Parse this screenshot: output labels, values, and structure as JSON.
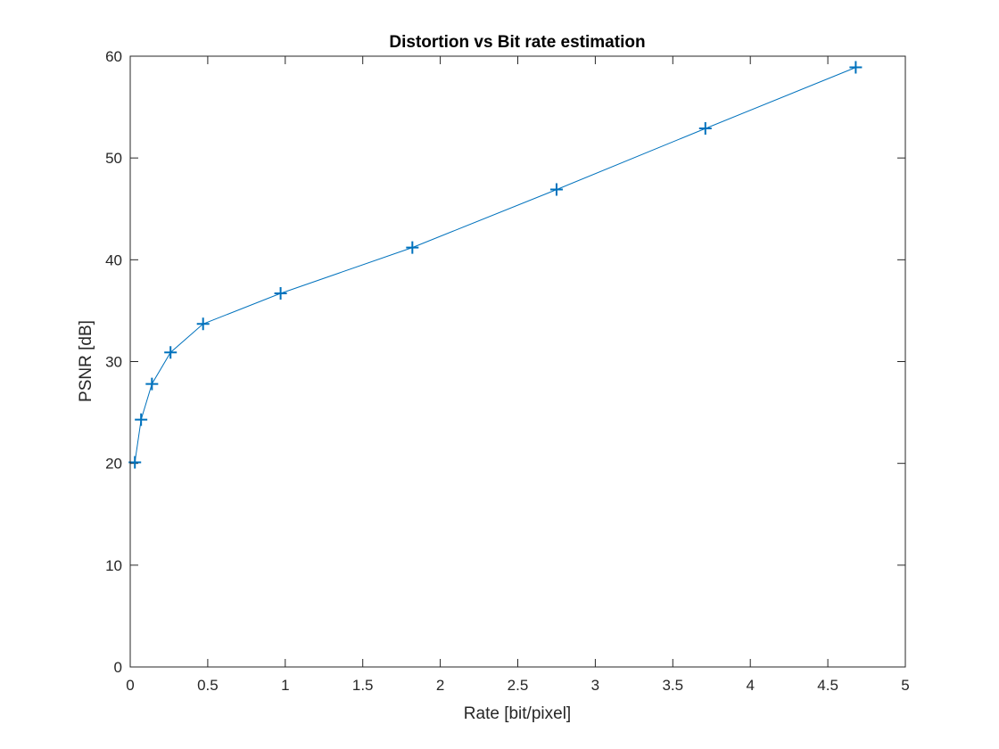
{
  "chart_data": {
    "type": "line",
    "title": "Distortion vs Bit rate estimation",
    "xlabel": "Rate [bit/pixel]",
    "ylabel": "PSNR [dB]",
    "xlim": [
      0,
      5
    ],
    "ylim": [
      0,
      60
    ],
    "xticks": [
      0,
      0.5,
      1,
      1.5,
      2,
      2.5,
      3,
      3.5,
      4,
      4.5,
      5
    ],
    "xtick_labels": [
      "0",
      "0.5",
      "1",
      "1.5",
      "2",
      "2.5",
      "3",
      "3.5",
      "4",
      "4.5",
      "5"
    ],
    "yticks": [
      0,
      10,
      20,
      30,
      40,
      50,
      60
    ],
    "ytick_labels": [
      "0",
      "10",
      "20",
      "30",
      "40",
      "50",
      "60"
    ],
    "grid": false,
    "marker": "+",
    "series": [
      {
        "color": "#0072BD",
        "x": [
          0.03,
          0.07,
          0.14,
          0.26,
          0.47,
          0.97,
          1.82,
          2.75,
          3.71,
          4.68
        ],
        "y": [
          20.1,
          24.3,
          27.8,
          30.9,
          33.7,
          36.7,
          41.2,
          46.9,
          52.9,
          58.9
        ]
      }
    ]
  }
}
